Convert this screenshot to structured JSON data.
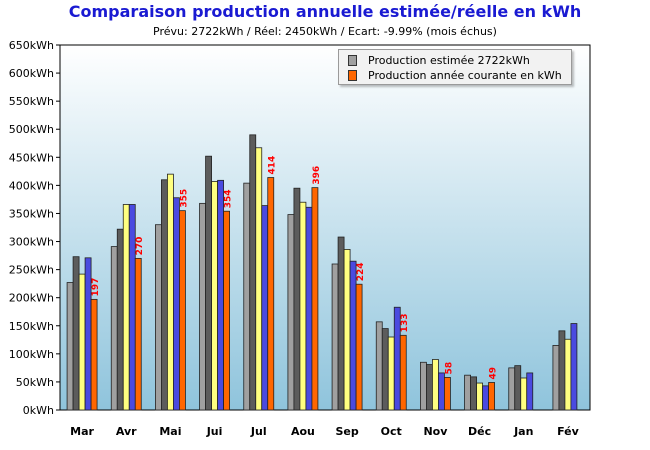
{
  "title": "Comparaison production annuelle estimée/réelle en kWh",
  "subtitle": "Prévu: 2722kWh / Réel: 2450kWh / Ecart: -9.99% (mois échus)",
  "legend": {
    "estimated_label": "Production estimée 2722kWh",
    "actual_label": "Production année courante en kWh"
  },
  "colors": {
    "bar_gray": "#a0a0a0",
    "bar_dark": "#5c5c5c",
    "bar_yellow": "#ffff80",
    "bar_blue": "#4a4ae0",
    "bar_actual": "#ff6600",
    "value_label": "#ff0000",
    "title": "#1a1ad2",
    "plot_top": "#ffffff",
    "plot_bottom": "#8fc4dc"
  },
  "chart_data": {
    "type": "bar",
    "categories": [
      "Mar",
      "Avr",
      "Mai",
      "Jui",
      "Jul",
      "Aou",
      "Sep",
      "Oct",
      "Nov",
      "Déc",
      "Jan",
      "Fév"
    ],
    "unit": "kWh",
    "ylim": [
      0,
      650
    ],
    "yticks": [
      "0kWh",
      "50kWh",
      "100kWh",
      "150kWh",
      "200kWh",
      "250kWh",
      "300kWh",
      "350kWh",
      "400kWh",
      "450kWh",
      "500kWh",
      "550kWh",
      "600kWh",
      "650kWh"
    ],
    "grid": false,
    "legend_position": "top-right",
    "series": [
      {
        "values": [
          227,
          291,
          330,
          368,
          404,
          348,
          260,
          157,
          85,
          62,
          75,
          115
        ]
      },
      {
        "values": [
          273,
          322,
          410,
          452,
          490,
          395,
          308,
          145,
          81,
          59,
          79,
          141
        ]
      },
      {
        "values": [
          242,
          366,
          420,
          407,
          467,
          370,
          286,
          130,
          90,
          48,
          57,
          126
        ]
      },
      {
        "values": [
          271,
          366,
          378,
          409,
          364,
          361,
          265,
          183,
          66,
          43,
          66,
          154
        ]
      },
      {
        "name": "Production année courante en kWh",
        "values": [
          197,
          270,
          355,
          354,
          414,
          396,
          224,
          133,
          58,
          49,
          null,
          null
        ],
        "labels": [
          "197",
          "270",
          "355",
          "354",
          "414",
          "396",
          "224",
          "133",
          "58",
          "49",
          "",
          ""
        ]
      }
    ]
  }
}
